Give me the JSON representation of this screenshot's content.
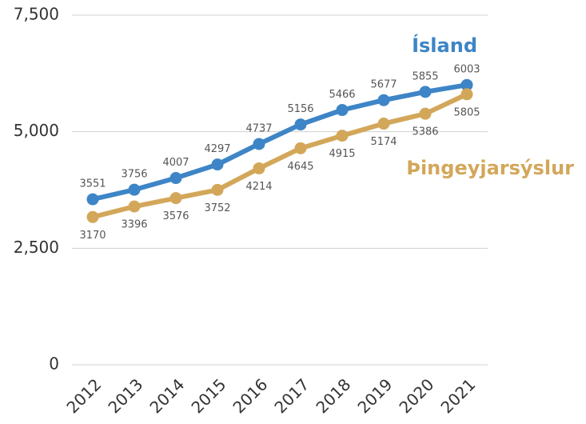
{
  "chart_data": {
    "type": "line",
    "categories": [
      "2012",
      "2013",
      "2014",
      "2015",
      "2016",
      "2017",
      "2018",
      "2019",
      "2020",
      "2021"
    ],
    "series": [
      {
        "name": "Ísland",
        "color": "#3d85c6",
        "values": [
          3551,
          3756,
          4007,
          4297,
          4737,
          5156,
          5466,
          5677,
          5855,
          6003
        ]
      },
      {
        "name": "Þingeyjarsýslur",
        "color": "#d3a75a",
        "values": [
          3170,
          3396,
          3576,
          3752,
          4214,
          4645,
          4915,
          5174,
          5386,
          5805
        ]
      }
    ],
    "ylim": [
      0,
      7500
    ],
    "yticks": [
      0,
      {
        "value": 2500,
        "label": "2,500"
      },
      {
        "value": 5000,
        "label": "5,000"
      },
      {
        "value": 7500,
        "label": "7,500"
      }
    ],
    "grid": true
  }
}
